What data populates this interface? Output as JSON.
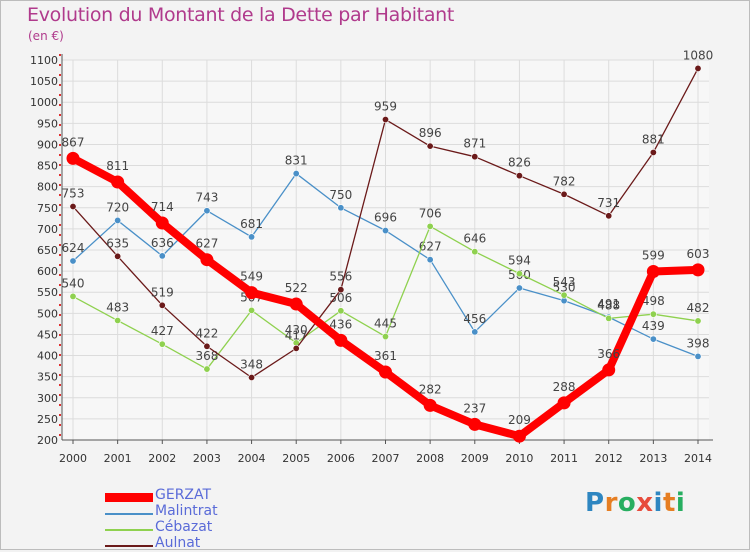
{
  "title": "Evolution du Montant de la Dette par Habitant",
  "unit": "(en €)",
  "logo": {
    "text": "Proxiti",
    "letter_colors": [
      "#2e86c1",
      "#e67e22",
      "#27ae60",
      "#e74c3c",
      "#2e86c1",
      "#e67e22",
      "#27ae60"
    ]
  },
  "chart_data": {
    "type": "line",
    "title": "Evolution du Montant de la Dette par Habitant",
    "ylabel": "(en €)",
    "xlabel": "",
    "ylim": [
      200,
      1100
    ],
    "yticks": [
      200,
      250,
      300,
      350,
      400,
      450,
      500,
      550,
      600,
      650,
      700,
      750,
      800,
      850,
      900,
      950,
      1000,
      1050,
      1100
    ],
    "grid": true,
    "legend_position": "bottom-left",
    "categories": [
      "2000",
      "2001",
      "2002",
      "2003",
      "2004",
      "2005",
      "2006",
      "2007",
      "2008",
      "2009",
      "2010",
      "2011",
      "2012",
      "2013",
      "2014"
    ],
    "series": [
      {
        "name": "GERZAT",
        "color": "#ff0000",
        "values": [
          867,
          811,
          714,
          627,
          549,
          522,
          436,
          361,
          282,
          237,
          209,
          288,
          366,
          599,
          603
        ]
      },
      {
        "name": "Malintrat",
        "color": "#4a90c8",
        "values": [
          624,
          720,
          636,
          743,
          681,
          831,
          750,
          696,
          627,
          456,
          560,
          530,
          491,
          439,
          398
        ]
      },
      {
        "name": "Cébazat",
        "color": "#8fd14f",
        "values": [
          540,
          483,
          427,
          368,
          507,
          430,
          506,
          445,
          706,
          646,
          594,
          543,
          488,
          498,
          482
        ]
      },
      {
        "name": "Aulnat",
        "color": "#6b1a1a",
        "values": [
          753,
          635,
          519,
          422,
          348,
          417,
          556,
          959,
          896,
          871,
          826,
          782,
          731,
          881,
          1080
        ]
      }
    ]
  }
}
